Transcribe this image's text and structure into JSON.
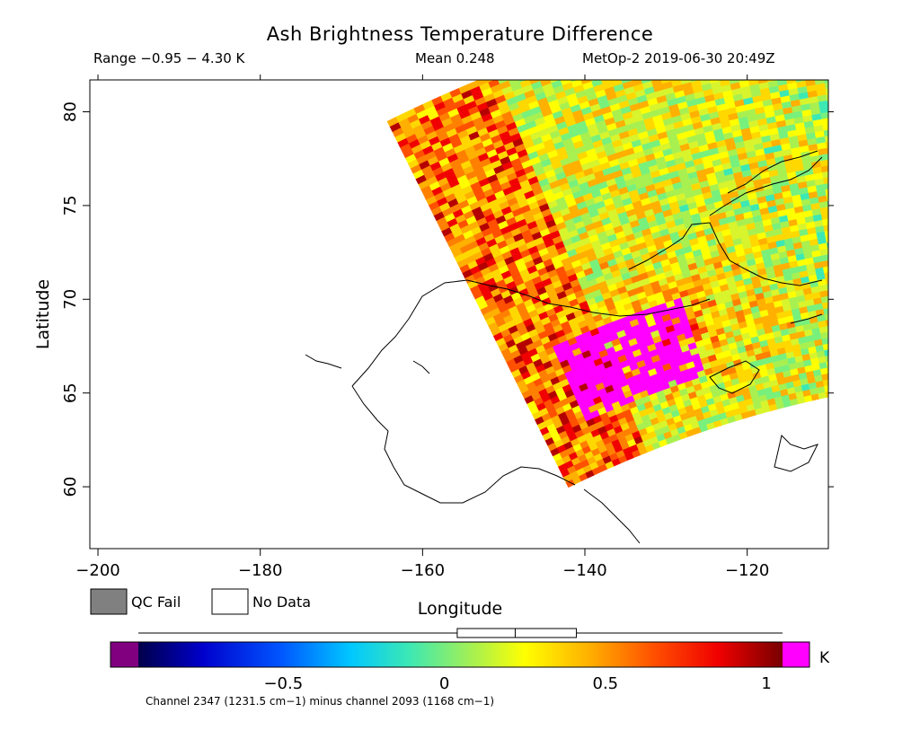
{
  "chart_data": {
    "type": "heatmap",
    "title": "Ash Brightness Temperature Difference",
    "range_text": "Range −0.95 − 4.30 K",
    "mean_text": "Mean 0.248",
    "satellite_text": "MetOp-2 2019-06-30 20:49Z",
    "xlabel": "Longitude",
    "ylabel": "Latitude",
    "xlim": [
      -201,
      -110
    ],
    "ylim": [
      56.7,
      81.7
    ],
    "x_ticks": [
      -200,
      -180,
      -160,
      -140,
      -120
    ],
    "x_tick_labels": [
      "−200",
      "−180",
      "−160",
      "−140",
      "−120"
    ],
    "y_ticks": [
      60,
      65,
      70,
      75,
      80
    ],
    "y_tick_labels": [
      "60",
      "65",
      "70",
      "75",
      "80"
    ],
    "legend": [
      {
        "label": "QC Fail",
        "color": "#808080"
      },
      {
        "label": "No Data",
        "color": "#ffffff"
      }
    ],
    "colorbar": {
      "range": [
        -0.95,
        1.05
      ],
      "ticks": [
        -0.5,
        0,
        0.5,
        1
      ],
      "tick_labels": [
        "−0.5",
        "0",
        "0.5",
        "1"
      ],
      "unit": "K",
      "under_color": "#800080",
      "over_color": "#ff00ff",
      "box_plot": {
        "min": -0.95,
        "q1": 0.04,
        "median": 0.22,
        "q3": 0.41,
        "max": 1.05
      }
    },
    "channel_note": "Channel 2347 (1231.5 cm−1) minus channel 2093 (1168 cm−1)"
  }
}
